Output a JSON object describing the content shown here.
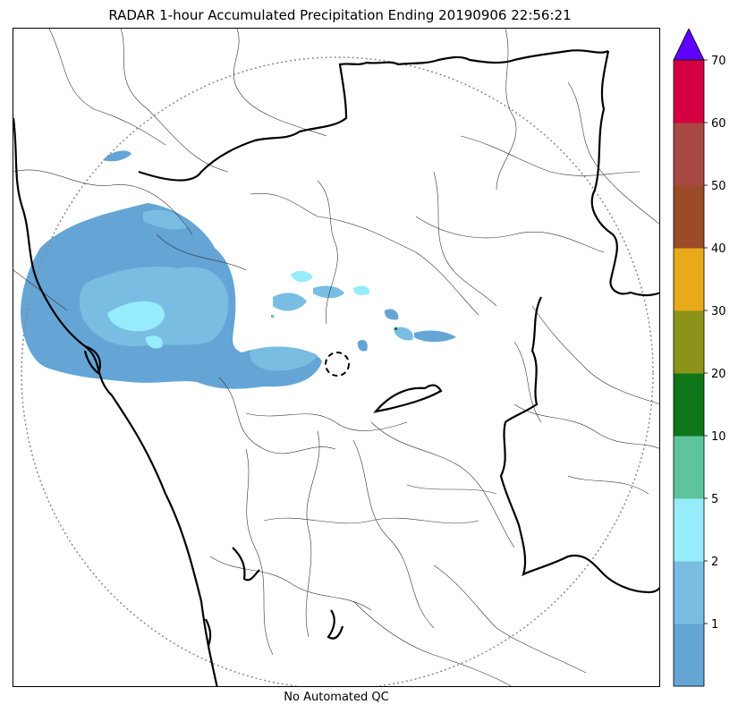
{
  "title": "RADAR 1-hour Accumulated Precipitation Ending 20190906 22:56:21",
  "footer_note": "No Automated QC",
  "colorbar": {
    "ticks": [
      "1",
      "2",
      "5",
      "10",
      "20",
      "30",
      "40",
      "50",
      "60",
      "70"
    ],
    "bins": [
      {
        "color": "#64a5d6"
      },
      {
        "color": "#79bde3"
      },
      {
        "color": "#96ecfb"
      },
      {
        "color": "#5fc49c"
      },
      {
        "color": "#0f7619"
      },
      {
        "color": "#8b9418"
      },
      {
        "color": "#e8a91a"
      },
      {
        "color": "#9b4b27"
      },
      {
        "color": "#a84a43"
      },
      {
        "color": "#d40042"
      }
    ],
    "extend_color": "#5e01ff"
  }
}
